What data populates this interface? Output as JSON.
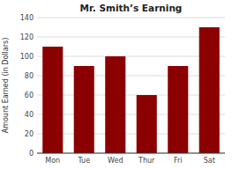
{
  "chart_data": {
    "type": "bar",
    "title": "Mr. Smith’s Earning",
    "categories": [
      "Mon",
      "Tue",
      "Wed",
      "Thur",
      "Fri",
      "Sat"
    ],
    "values": [
      110,
      90,
      100,
      60,
      90,
      130
    ],
    "color": "#8B0000",
    "ylabel": "Amount Earned (in Dollars)",
    "ylim": [
      0,
      140
    ],
    "yticks": [
      0,
      20,
      40,
      60,
      80,
      100,
      120,
      140
    ],
    "grid": true
  }
}
